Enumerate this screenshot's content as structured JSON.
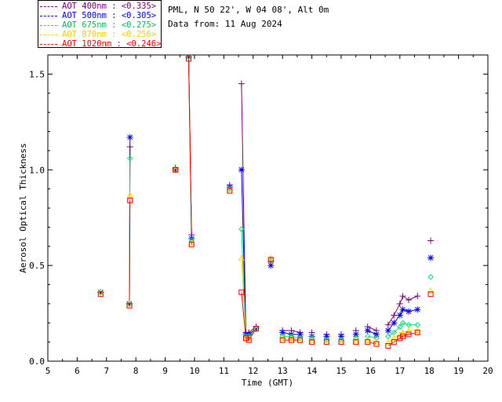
{
  "info": {
    "line1": "PML, N 50 22', W 04 08', Alt 0m",
    "line2": "Data from: 11 Aug 2024"
  },
  "legend": [
    {
      "label": "AOT  400nm : <0.335>",
      "color": "#800080"
    },
    {
      "label": "AOT  500nm : <0.305>",
      "color": "#0000ff"
    },
    {
      "label": "AOT  675nm : <0.275>",
      "color": "#00e676"
    },
    {
      "label": "AOT  870nm : <0.256>",
      "color": "#ffd700"
    },
    {
      "label": "AOT 1020nm : <0.246>",
      "color": "#ff0000"
    }
  ],
  "chart_data": {
    "type": "scatter",
    "xlabel": "Time (GMT)",
    "ylabel": "Aerosol Optical Thickness",
    "xlim": [
      5,
      20
    ],
    "ylim": [
      0,
      1.6
    ],
    "xticks": [
      "5",
      "6",
      "7",
      "8",
      "9",
      "10",
      "11",
      "12",
      "13",
      "14",
      "15",
      "16",
      "17",
      "18",
      "19",
      "20"
    ],
    "yticks": [
      "0.0",
      "0.5",
      "1.0",
      "1.5"
    ],
    "series": [
      {
        "name": "AOT 400nm",
        "color": "#800080",
        "marker": "plus",
        "x": [
          6.8,
          7.78,
          7.8,
          9.35,
          9.8,
          9.9,
          11.2,
          11.6,
          11.75,
          11.85,
          12.1,
          12.6,
          13.0,
          13.3,
          13.6,
          14.0,
          14.5,
          15.0,
          15.5,
          15.9,
          16.2,
          16.6,
          16.8,
          17.0,
          17.1,
          17.3,
          17.6,
          18.05
        ],
        "y": [
          0.36,
          0.3,
          1.12,
          1.01,
          1.59,
          0.66,
          0.92,
          1.45,
          0.15,
          0.15,
          0.18,
          0.52,
          0.16,
          0.16,
          0.15,
          0.15,
          0.14,
          0.14,
          0.16,
          0.18,
          0.16,
          0.19,
          0.24,
          0.3,
          0.34,
          0.32,
          0.34,
          0.63
        ]
      },
      {
        "name": "AOT 500nm",
        "color": "#0000ff",
        "marker": "star",
        "x": [
          6.8,
          7.78,
          7.8,
          9.35,
          9.8,
          9.9,
          11.2,
          11.6,
          11.75,
          11.85,
          12.1,
          12.6,
          13.0,
          13.3,
          13.6,
          14.0,
          14.5,
          15.0,
          15.5,
          15.9,
          16.2,
          16.6,
          16.8,
          17.0,
          17.1,
          17.3,
          17.6,
          18.05
        ],
        "y": [
          0.36,
          0.3,
          1.17,
          1.0,
          1.59,
          0.64,
          0.91,
          1.0,
          0.14,
          0.14,
          0.17,
          0.5,
          0.15,
          0.14,
          0.14,
          0.13,
          0.13,
          0.13,
          0.14,
          0.16,
          0.14,
          0.16,
          0.2,
          0.24,
          0.27,
          0.26,
          0.27,
          0.54
        ]
      },
      {
        "name": "AOT 675nm",
        "color": "#00e676",
        "marker": "diamond",
        "x": [
          6.8,
          7.78,
          7.8,
          9.35,
          9.8,
          9.9,
          11.2,
          11.6,
          11.75,
          11.85,
          12.1,
          12.6,
          13.0,
          13.3,
          13.6,
          14.0,
          14.5,
          15.0,
          15.5,
          15.9,
          16.2,
          16.6,
          16.8,
          17.0,
          17.1,
          17.3,
          17.6,
          18.05
        ],
        "y": [
          0.36,
          0.3,
          1.06,
          1.0,
          1.59,
          0.63,
          0.9,
          0.69,
          0.13,
          0.13,
          0.17,
          0.53,
          0.13,
          0.13,
          0.12,
          0.12,
          0.11,
          0.11,
          0.12,
          0.13,
          0.12,
          0.13,
          0.15,
          0.18,
          0.2,
          0.19,
          0.19,
          0.44
        ]
      },
      {
        "name": "AOT 870nm",
        "color": "#ffd700",
        "marker": "triangle",
        "x": [
          6.8,
          7.78,
          7.8,
          9.35,
          9.8,
          9.9,
          11.2,
          11.6,
          11.75,
          11.85,
          12.1,
          12.6,
          13.0,
          13.3,
          13.6,
          14.0,
          14.5,
          15.0,
          15.5,
          15.9,
          16.2,
          16.6,
          16.8,
          17.0,
          17.1,
          17.3,
          17.6,
          18.05
        ],
        "y": [
          0.36,
          0.3,
          0.87,
          1.0,
          1.59,
          0.62,
          0.89,
          0.54,
          0.12,
          0.12,
          0.17,
          0.54,
          0.12,
          0.12,
          0.11,
          0.11,
          0.1,
          0.1,
          0.11,
          0.11,
          0.1,
          0.1,
          0.12,
          0.14,
          0.15,
          0.16,
          0.16,
          0.37
        ]
      },
      {
        "name": "AOT 1020nm",
        "color": "#ff0000",
        "marker": "square",
        "x": [
          6.8,
          7.78,
          7.8,
          9.35,
          9.8,
          9.9,
          11.2,
          11.6,
          11.75,
          11.85,
          12.1,
          12.6,
          13.0,
          13.3,
          13.6,
          14.0,
          14.5,
          15.0,
          15.5,
          15.9,
          16.2,
          16.6,
          16.8,
          17.0,
          17.1,
          17.3,
          17.6,
          18.05
        ],
        "y": [
          0.35,
          0.29,
          0.84,
          1.0,
          1.58,
          0.61,
          0.89,
          0.36,
          0.12,
          0.11,
          0.17,
          0.53,
          0.11,
          0.11,
          0.11,
          0.1,
          0.1,
          0.1,
          0.1,
          0.1,
          0.09,
          0.08,
          0.1,
          0.12,
          0.13,
          0.14,
          0.15,
          0.35
        ]
      }
    ]
  }
}
